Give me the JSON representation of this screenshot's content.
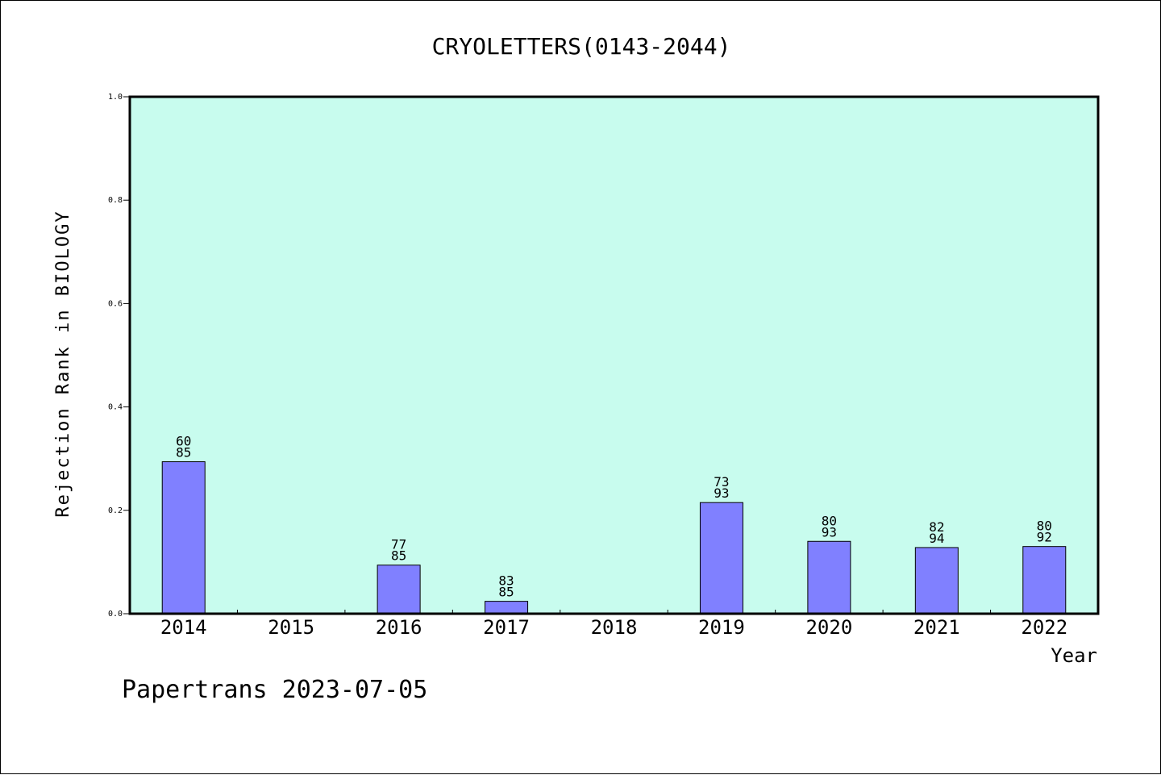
{
  "chart_data": {
    "type": "bar",
    "title": "CRYOLETTERS(0143-2044)",
    "xlabel": "Year",
    "ylabel": "Rejection Rank in BIOLOGY",
    "ylim": [
      0,
      1.0
    ],
    "yticks": [
      "0.0",
      "0.2",
      "0.4",
      "0.6",
      "0.8",
      "1.0"
    ],
    "grid": false,
    "categories": [
      "2014",
      "2015",
      "2016",
      "2017",
      "2018",
      "2019",
      "2020",
      "2021",
      "2022"
    ],
    "values": [
      0.294,
      null,
      0.094,
      0.024,
      null,
      0.215,
      0.14,
      0.128,
      0.13
    ],
    "labels_top": [
      "60",
      "",
      "77",
      "83",
      "",
      "73",
      "80",
      "82",
      "80"
    ],
    "labels_bottom": [
      "85",
      "",
      "85",
      "85",
      "",
      "93",
      "93",
      "94",
      "92"
    ]
  },
  "footer": "Papertrans 2023-07-05",
  "colors": {
    "plot_background": "#c8fcee",
    "bar_fill": "#8080ff",
    "bar_stroke": "#000000",
    "axis": "#000000"
  }
}
